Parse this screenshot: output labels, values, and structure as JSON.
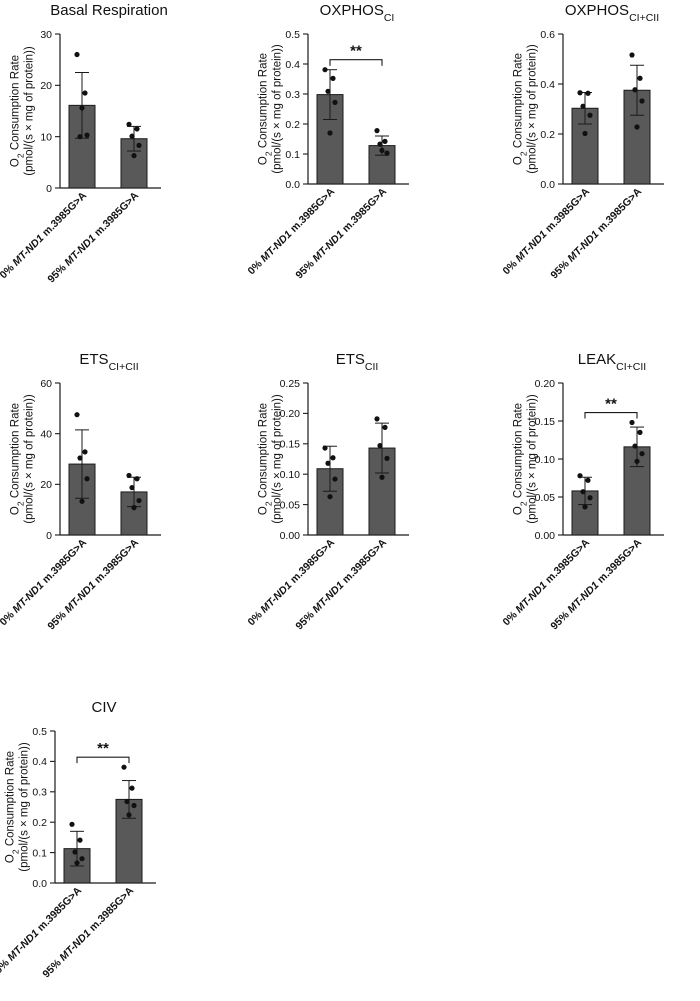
{
  "colors": {
    "bar": "#595959",
    "bar_edge": "#1a1a1a",
    "axis": "#1a1a1a",
    "point": "#111111",
    "background": "#ffffff"
  },
  "text": {
    "yaxis_line1": "O",
    "yaxis_sub": "2",
    "yaxis_line1_rest": " Consumption Rate",
    "yaxis_line2": "(pmol/(s × mg of protein))",
    "group0_prefix": "0% ",
    "group1_prefix": "95% ",
    "gene": "MT-ND1",
    "variant": " m.3985G>A"
  },
  "chart_data": [
    {
      "type": "bar",
      "title": "Basal Respiration",
      "title_sub": "",
      "categories": [
        "0% MT-ND1 m.3985G>A",
        "95% MT-ND1 m.3985G>A"
      ],
      "values": [
        16.1,
        9.6
      ],
      "error": [
        6.4,
        2.4
      ],
      "points": [
        [
          26,
          18.5,
          10,
          10.3,
          15.6
        ],
        [
          12.4,
          11.5,
          10.1,
          8.3,
          6.3
        ]
      ],
      "ylim": [
        0,
        30
      ],
      "yticks": [
        0,
        10,
        20,
        30
      ],
      "tick_labels": [
        "0",
        "10",
        "20",
        "30"
      ],
      "significance": ""
    },
    {
      "type": "bar",
      "title": "OXPHOS",
      "title_sub": "CI",
      "categories": [
        "0% MT-ND1 m.3985G>A",
        "95% MT-ND1 m.3985G>A"
      ],
      "values": [
        0.298,
        0.128
      ],
      "error": [
        0.083,
        0.032
      ],
      "points": [
        [
          0.381,
          0.352,
          0.309,
          0.272,
          0.17
        ],
        [
          0.178,
          0.142,
          0.133,
          0.103,
          0.112
        ]
      ],
      "ylim": [
        0,
        0.5
      ],
      "yticks": [
        0,
        0.1,
        0.2,
        0.3,
        0.4,
        0.5
      ],
      "tick_labels": [
        "0.0",
        "0.1",
        "0.2",
        "0.3",
        "0.4",
        "0.5"
      ],
      "significance": "**"
    },
    {
      "type": "bar",
      "title": "OXPHOS",
      "title_sub": "CI+CII",
      "categories": [
        "0% MT-ND1 m.3985G>A",
        "95% MT-ND1 m.3985G>A"
      ],
      "values": [
        0.303,
        0.375
      ],
      "error": [
        0.063,
        0.1
      ],
      "points": [
        [
          0.365,
          0.363,
          0.311,
          0.275,
          0.202
        ],
        [
          0.516,
          0.423,
          0.377,
          0.332,
          0.228
        ]
      ],
      "ylim": [
        0,
        0.6
      ],
      "yticks": [
        0,
        0.2,
        0.4,
        0.6
      ],
      "tick_labels": [
        "0.0",
        "0.2",
        "0.4",
        "0.6"
      ],
      "significance": ""
    },
    {
      "type": "bar",
      "title": "ETS",
      "title_sub": "CI+CII",
      "categories": [
        "0% MT-ND1 m.3985G>A",
        "95% MT-ND1 m.3985G>A"
      ],
      "values": [
        28.0,
        17.0
      ],
      "error": [
        13.5,
        5.8
      ],
      "points": [
        [
          47.5,
          32.8,
          30.4,
          22.2,
          13.3
        ],
        [
          23.5,
          22.2,
          18.7,
          13.6,
          10.8
        ]
      ],
      "ylim": [
        0,
        60
      ],
      "yticks": [
        0,
        20,
        40,
        60
      ],
      "tick_labels": [
        "0",
        "20",
        "40",
        "60"
      ],
      "significance": ""
    },
    {
      "type": "bar",
      "title": "ETS",
      "title_sub": "CII",
      "categories": [
        "0% MT-ND1 m.3985G>A",
        "95% MT-ND1 m.3985G>A"
      ],
      "values": [
        0.109,
        0.143
      ],
      "error": [
        0.037,
        0.041
      ],
      "points": [
        [
          0.143,
          0.127,
          0.118,
          0.092,
          0.063
        ],
        [
          0.191,
          0.177,
          0.147,
          0.126,
          0.095
        ]
      ],
      "ylim": [
        0,
        0.25
      ],
      "yticks": [
        0,
        0.05,
        0.1,
        0.15,
        0.2,
        0.25
      ],
      "tick_labels": [
        "0.00",
        "0.05",
        "0.10",
        "0.15",
        "0.20",
        "0.25"
      ],
      "significance": ""
    },
    {
      "type": "bar",
      "title": "LEAK",
      "title_sub": "CI+CII",
      "categories": [
        "0% MT-ND1 m.3985G>A",
        "95% MT-ND1 m.3985G>A"
      ],
      "values": [
        0.058,
        0.116
      ],
      "error": [
        0.018,
        0.026
      ],
      "points": [
        [
          0.078,
          0.072,
          0.057,
          0.049,
          0.037
        ],
        [
          0.148,
          0.135,
          0.117,
          0.107,
          0.097
        ]
      ],
      "ylim": [
        0,
        0.2
      ],
      "yticks": [
        0,
        0.05,
        0.1,
        0.15,
        0.2
      ],
      "tick_labels": [
        "0.00",
        "0.05",
        "0.10",
        "0.15",
        "0.20"
      ],
      "significance": "**"
    },
    {
      "type": "bar",
      "title": "CIV",
      "title_sub": "",
      "categories": [
        "0% MT-ND1 m.3985G>A",
        "95% MT-ND1 m.3985G>A"
      ],
      "values": [
        0.113,
        0.275
      ],
      "error": [
        0.057,
        0.062
      ],
      "points": [
        [
          0.193,
          0.141,
          0.102,
          0.08,
          0.066
        ],
        [
          0.381,
          0.312,
          0.268,
          0.255,
          0.224
        ]
      ],
      "ylim": [
        0,
        0.5
      ],
      "yticks": [
        0,
        0.1,
        0.2,
        0.3,
        0.4,
        0.5
      ],
      "tick_labels": [
        "0.0",
        "0.1",
        "0.2",
        "0.3",
        "0.4",
        "0.5"
      ],
      "significance": "**"
    }
  ]
}
